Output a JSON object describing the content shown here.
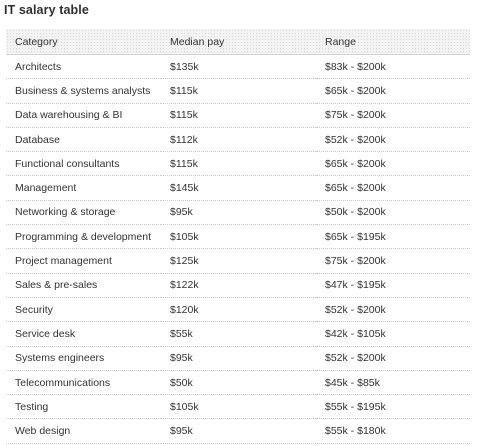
{
  "page": {
    "title": "IT salary table"
  },
  "table": {
    "headers": [
      "Category",
      "Median pay",
      "Range"
    ],
    "rows": [
      {
        "category": "Architects",
        "median": "$135k",
        "range": "$83k - $200k"
      },
      {
        "category": "Business & systems analysts",
        "median": "$115k",
        "range": "$65k - $200k"
      },
      {
        "category": "Data warehousing & BI",
        "median": "$115k",
        "range": "$75k - $200k"
      },
      {
        "category": "Database",
        "median": "$112k",
        "range": "$52k - $200k"
      },
      {
        "category": "Functional consultants",
        "median": "$115k",
        "range": "$65k - $200k"
      },
      {
        "category": "Management",
        "median": "$145k",
        "range": "$65k - $200k"
      },
      {
        "category": "Networking & storage",
        "median": "$95k",
        "range": "$50k - $200k"
      },
      {
        "category": "Programming & development",
        "median": "$105k",
        "range": "$65k - $195k"
      },
      {
        "category": "Project management",
        "median": "$125k",
        "range": "$75k - $200k"
      },
      {
        "category": "Sales & pre-sales",
        "median": "$122k",
        "range": "$47k - $195k"
      },
      {
        "category": "Security",
        "median": "$120k",
        "range": "$52k - $200k"
      },
      {
        "category": "Service desk",
        "median": "$55k",
        "range": "$42k - $105k"
      },
      {
        "category": "Systems engineers",
        "median": "$95k",
        "range": "$52k - $200k"
      },
      {
        "category": "Telecommunications",
        "median": "$50k",
        "range": "$45k - $85k"
      },
      {
        "category": "Testing",
        "median": "$105k",
        "range": "$55k - $195k"
      },
      {
        "category": "Web design",
        "median": "$95k",
        "range": "$55k - $180k"
      }
    ]
  }
}
